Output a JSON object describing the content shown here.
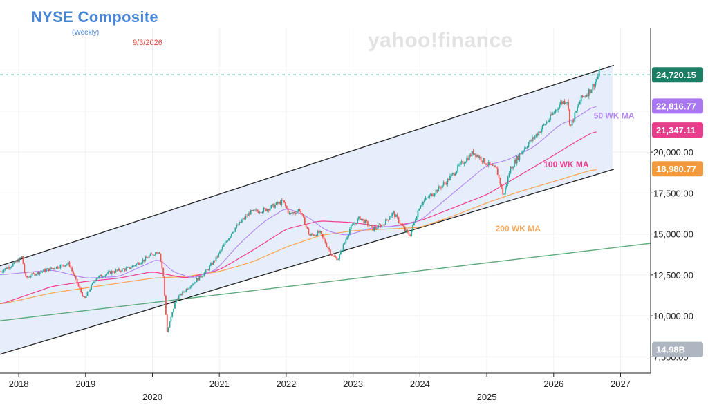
{
  "header": {
    "title": "NYSE Composite",
    "subtitle": "(Weekly)",
    "date": "9/3/2026",
    "watermark": "yahoo!finance"
  },
  "colors": {
    "channel_fill": "#e6edfb",
    "candle_up": "#26a69a",
    "candle_down": "#ef5350",
    "ma50": "#b388f5",
    "ma100": "#ec3d8f",
    "ma200": "#f7a85a",
    "long_trend": "#5aa87a",
    "channel_line": "#222222",
    "last_price": "#1a7f64"
  },
  "chart_data": {
    "type": "candlestick",
    "title": "NYSE Composite",
    "subtitle": "(Weekly)",
    "x_range": [
      2017.72,
      2027.45
    ],
    "y_range": [
      6500,
      27600
    ],
    "x_ticks": [
      {
        "t": 2018.0,
        "label": "2018",
        "row": 1
      },
      {
        "t": 2019.0,
        "label": "2019",
        "row": 1
      },
      {
        "t": 2020.0,
        "label": "2020",
        "row": 2
      },
      {
        "t": 2021.0,
        "label": "2021",
        "row": 1
      },
      {
        "t": 2022.0,
        "label": "2022",
        "row": 1
      },
      {
        "t": 2023.0,
        "label": "2023",
        "row": 1
      },
      {
        "t": 2024.0,
        "label": "2024",
        "row": 1
      },
      {
        "t": 2025.0,
        "label": "2025",
        "row": 2
      },
      {
        "t": 2026.0,
        "label": "2026",
        "row": 1
      },
      {
        "t": 2027.0,
        "label": "2027",
        "row": 1
      }
    ],
    "y_ticks": [
      {
        "v": 7500,
        "label": "7,500.00"
      },
      {
        "v": 10000,
        "label": "10,000.00"
      },
      {
        "v": 12500,
        "label": "12,500.00"
      },
      {
        "v": 15000,
        "label": "15,000.00"
      },
      {
        "v": 17500,
        "label": "17,500.00"
      },
      {
        "v": 20000,
        "label": "20,000.00"
      }
    ],
    "price_badges": [
      {
        "label": "24,720.15",
        "v": 24720,
        "color": "#1a7f64"
      },
      {
        "label": "22,816.77",
        "v": 22817,
        "color": "#a978f0"
      },
      {
        "label": "21,347.11",
        "v": 21347,
        "color": "#e83c8c"
      },
      {
        "label": "18,980.77",
        "v": 18981,
        "color": "#f59a3c"
      },
      {
        "label": "14.98B",
        "v": 7950,
        "color": "#aeb6c2"
      }
    ],
    "last_price": 24720,
    "price_path": [
      [
        2017.72,
        12700
      ],
      [
        2017.9,
        13100
      ],
      [
        2018.05,
        13600
      ],
      [
        2018.1,
        12300
      ],
      [
        2018.25,
        12600
      ],
      [
        2018.5,
        12900
      ],
      [
        2018.75,
        13200
      ],
      [
        2018.85,
        12200
      ],
      [
        2018.98,
        11000
      ],
      [
        2019.15,
        12300
      ],
      [
        2019.4,
        12700
      ],
      [
        2019.65,
        12900
      ],
      [
        2019.9,
        13500
      ],
      [
        2020.1,
        14000
      ],
      [
        2020.16,
        12500
      ],
      [
        2020.22,
        9000
      ],
      [
        2020.35,
        11000
      ],
      [
        2020.55,
        11800
      ],
      [
        2020.8,
        12700
      ],
      [
        2020.95,
        13500
      ],
      [
        2021.2,
        15200
      ],
      [
        2021.45,
        16300
      ],
      [
        2021.7,
        16500
      ],
      [
        2021.95,
        17000
      ],
      [
        2022.05,
        16200
      ],
      [
        2022.2,
        16500
      ],
      [
        2022.35,
        14900
      ],
      [
        2022.5,
        15100
      ],
      [
        2022.7,
        13600
      ],
      [
        2022.78,
        13500
      ],
      [
        2022.95,
        15300
      ],
      [
        2023.1,
        16000
      ],
      [
        2023.3,
        15300
      ],
      [
        2023.45,
        15600
      ],
      [
        2023.6,
        16300
      ],
      [
        2023.78,
        15200
      ],
      [
        2023.85,
        14900
      ],
      [
        2024.0,
        16800
      ],
      [
        2024.2,
        17500
      ],
      [
        2024.4,
        18200
      ],
      [
        2024.6,
        19200
      ],
      [
        2024.8,
        20000
      ],
      [
        2025.0,
        19300
      ],
      [
        2025.15,
        18900
      ],
      [
        2025.25,
        17300
      ],
      [
        2025.35,
        19000
      ],
      [
        2025.55,
        20200
      ],
      [
        2025.75,
        21100
      ],
      [
        2025.95,
        22100
      ],
      [
        2026.1,
        23000
      ],
      [
        2026.2,
        23200
      ],
      [
        2026.25,
        21500
      ],
      [
        2026.4,
        23200
      ],
      [
        2026.55,
        23800
      ],
      [
        2026.65,
        24500
      ],
      [
        2026.68,
        24800
      ],
      [
        2026.7,
        24720
      ]
    ],
    "ma50": [
      [
        2017.72,
        12500
      ],
      [
        2018.5,
        12800
      ],
      [
        2019.0,
        12300
      ],
      [
        2019.5,
        12400
      ],
      [
        2020.1,
        13500
      ],
      [
        2020.3,
        12700
      ],
      [
        2020.6,
        12300
      ],
      [
        2020.95,
        12800
      ],
      [
        2021.3,
        14400
      ],
      [
        2021.65,
        15700
      ],
      [
        2022.0,
        16600
      ],
      [
        2022.3,
        16100
      ],
      [
        2022.6,
        15200
      ],
      [
        2022.9,
        14900
      ],
      [
        2023.3,
        15400
      ],
      [
        2023.7,
        15500
      ],
      [
        2024.0,
        15800
      ],
      [
        2024.5,
        17500
      ],
      [
        2025.0,
        19200
      ],
      [
        2025.3,
        19500
      ],
      [
        2025.7,
        20300
      ],
      [
        2026.1,
        21700
      ],
      [
        2026.3,
        22000
      ],
      [
        2026.6,
        22800
      ],
      [
        2026.65,
        22817
      ]
    ],
    "ma100": [
      [
        2017.72,
        10700
      ],
      [
        2018.5,
        11800
      ],
      [
        2019.0,
        12100
      ],
      [
        2019.5,
        12300
      ],
      [
        2020.0,
        12700
      ],
      [
        2020.5,
        12300
      ],
      [
        2021.0,
        12800
      ],
      [
        2021.5,
        14000
      ],
      [
        2022.0,
        15300
      ],
      [
        2022.5,
        15800
      ],
      [
        2023.0,
        15700
      ],
      [
        2023.5,
        15400
      ],
      [
        2024.0,
        15800
      ],
      [
        2024.5,
        16600
      ],
      [
        2025.0,
        17400
      ],
      [
        2025.5,
        18600
      ],
      [
        2026.0,
        19800
      ],
      [
        2026.4,
        20800
      ],
      [
        2026.65,
        21347
      ]
    ],
    "ma200": [
      [
        2017.72,
        10700
      ],
      [
        2018.5,
        11400
      ],
      [
        2019.0,
        11700
      ],
      [
        2019.5,
        12000
      ],
      [
        2020.0,
        12300
      ],
      [
        2020.5,
        12400
      ],
      [
        2021.0,
        12700
      ],
      [
        2021.5,
        13300
      ],
      [
        2022.0,
        14200
      ],
      [
        2022.5,
        14900
      ],
      [
        2023.0,
        15200
      ],
      [
        2023.5,
        15300
      ],
      [
        2024.0,
        15400
      ],
      [
        2024.5,
        16100
      ],
      [
        2025.0,
        16900
      ],
      [
        2025.5,
        17600
      ],
      [
        2026.0,
        18200
      ],
      [
        2026.4,
        18700
      ],
      [
        2026.65,
        18981
      ]
    ],
    "ma_labels": [
      {
        "text": "50 WK MA",
        "t": 2026.6,
        "v": 22050,
        "color": "#b388f5"
      },
      {
        "text": "100 WK MA",
        "t": 2025.85,
        "v": 19080,
        "color": "#ec3d8f"
      },
      {
        "text": "200 WK MA",
        "t": 2025.13,
        "v": 15150,
        "color": "#f7a85a"
      }
    ],
    "channel": {
      "upper": [
        [
          2017.72,
          13050
        ],
        [
          2026.9,
          25300
        ]
      ],
      "lower": [
        [
          2017.72,
          7650
        ],
        [
          2026.9,
          18950
        ]
      ],
      "region_end": 2026.88
    },
    "long_trend": [
      [
        2017.72,
        9700
      ],
      [
        2027.45,
        14430
      ]
    ],
    "last_price_line": [
      [
        2017.72,
        24720
      ],
      [
        2027.45,
        24720
      ]
    ]
  }
}
